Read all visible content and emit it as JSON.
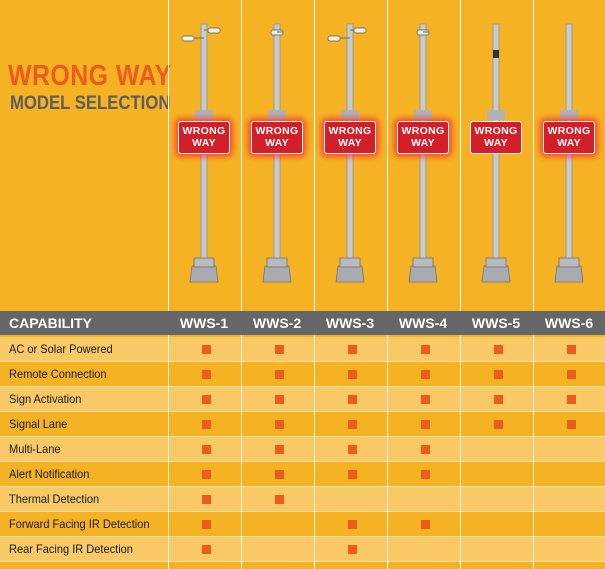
{
  "title": {
    "line1": "WRONG WAY",
    "line2": "MODEL SELECTION"
  },
  "header": {
    "capability": "CAPABILITY"
  },
  "models": [
    {
      "name": "WWS-1",
      "sign_line1": "WRONG",
      "sign_line2": "WAY",
      "cameras": 2,
      "flashing": true
    },
    {
      "name": "WWS-2",
      "sign_line1": "WRONG",
      "sign_line2": "WAY",
      "cameras": 1,
      "flashing": true
    },
    {
      "name": "WWS-3",
      "sign_line1": "WRONG",
      "sign_line2": "WAY",
      "cameras": 2,
      "flashing": true
    },
    {
      "name": "WWS-4",
      "sign_line1": "WRONG",
      "sign_line2": "WAY",
      "cameras": 1,
      "flashing": true
    },
    {
      "name": "WWS-5",
      "sign_line1": "WRONG",
      "sign_line2": "WAY",
      "cameras": 0,
      "flashing": false
    },
    {
      "name": "WWS-6",
      "sign_line1": "WRONG",
      "sign_line2": "WAY",
      "cameras": 0,
      "flashing": true
    }
  ],
  "capabilities": [
    {
      "label": "AC or Solar Powered",
      "supported": [
        true,
        true,
        true,
        true,
        true,
        true
      ]
    },
    {
      "label": "Remote Connection",
      "supported": [
        true,
        true,
        true,
        true,
        true,
        true
      ]
    },
    {
      "label": "Sign Activation",
      "supported": [
        true,
        true,
        true,
        true,
        true,
        true
      ]
    },
    {
      "label": "Signal Lane",
      "supported": [
        true,
        true,
        true,
        true,
        true,
        true
      ]
    },
    {
      "label": "Multi-Lane",
      "supported": [
        true,
        true,
        true,
        true,
        false,
        false
      ]
    },
    {
      "label": "Alert Notification",
      "supported": [
        true,
        true,
        true,
        true,
        false,
        false
      ]
    },
    {
      "label": "Thermal Detection",
      "supported": [
        true,
        true,
        false,
        false,
        false,
        false
      ]
    },
    {
      "label": "Forward Facing IR Detection",
      "supported": [
        true,
        false,
        true,
        true,
        false,
        false
      ]
    },
    {
      "label": "Rear Facing IR Detection",
      "supported": [
        true,
        false,
        true,
        false,
        false,
        false
      ]
    }
  ],
  "colors": {
    "background": "#f5b324",
    "accent": "#ef5a1e",
    "header_bar": "#65666a",
    "sign_red": "#d41f2b"
  }
}
